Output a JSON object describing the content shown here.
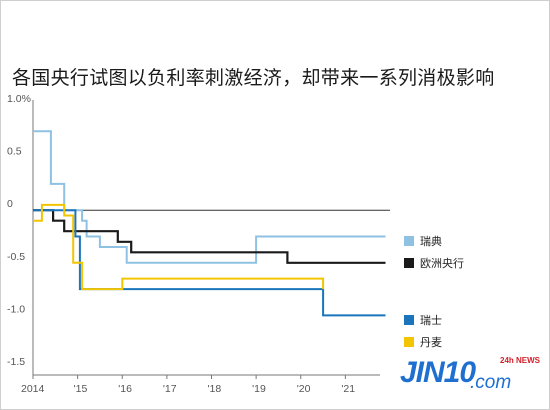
{
  "chart_data": {
    "type": "line",
    "title": "各国央行试图以负利率刺激经济，却带来一系列消极影响",
    "xlabel": "",
    "ylabel": "",
    "xlim": [
      2014.0,
      2022.0
    ],
    "ylim": [
      -1.5,
      1.0
    ],
    "y_ticks": [
      {
        "value": 1.0,
        "label": "1.0%"
      },
      {
        "value": 0.5,
        "label": "0.5"
      },
      {
        "value": 0.0,
        "label": "0"
      },
      {
        "value": -0.5,
        "label": "-0.5"
      },
      {
        "value": -1.0,
        "label": "-1.0"
      },
      {
        "value": -1.5,
        "label": "-1.5"
      }
    ],
    "x_ticks": [
      {
        "value": 2014.0,
        "label": "2014"
      },
      {
        "value": 2015.0,
        "label": "'15"
      },
      {
        "value": 2016.0,
        "label": "'16"
      },
      {
        "value": 2017.0,
        "label": "'17"
      },
      {
        "value": 2018.0,
        "label": "'18"
      },
      {
        "value": 2019.0,
        "label": "'19"
      },
      {
        "value": 2020.0,
        "label": "'20"
      },
      {
        "value": 2021.0,
        "label": "'21"
      }
    ],
    "legend_position": "right",
    "series": [
      {
        "name": "瑞典",
        "color": "#8fc1e3",
        "points": [
          [
            2014.0,
            0.75
          ],
          [
            2014.4,
            0.75
          ],
          [
            2014.4,
            0.25
          ],
          [
            2014.7,
            0.25
          ],
          [
            2014.7,
            0.0
          ],
          [
            2015.1,
            0.0
          ],
          [
            2015.1,
            -0.1
          ],
          [
            2015.2,
            -0.1
          ],
          [
            2015.2,
            -0.25
          ],
          [
            2015.5,
            -0.25
          ],
          [
            2015.5,
            -0.35
          ],
          [
            2016.1,
            -0.35
          ],
          [
            2016.1,
            -0.5
          ],
          [
            2019.0,
            -0.5
          ],
          [
            2019.0,
            -0.25
          ],
          [
            2021.9,
            -0.25
          ]
        ]
      },
      {
        "name": "欧洲央行",
        "color": "#1a1a1a",
        "points": [
          [
            2014.0,
            0.0
          ],
          [
            2014.45,
            0.0
          ],
          [
            2014.45,
            -0.1
          ],
          [
            2014.7,
            -0.1
          ],
          [
            2014.7,
            -0.2
          ],
          [
            2015.9,
            -0.2
          ],
          [
            2015.9,
            -0.3
          ],
          [
            2016.2,
            -0.3
          ],
          [
            2016.2,
            -0.4
          ],
          [
            2019.7,
            -0.4
          ],
          [
            2019.7,
            -0.5
          ],
          [
            2021.9,
            -0.5
          ]
        ]
      },
      {
        "name": "瑞士",
        "color": "#1b75bc",
        "points": [
          [
            2014.0,
            0.0
          ],
          [
            2014.95,
            0.0
          ],
          [
            2014.95,
            -0.25
          ],
          [
            2015.05,
            -0.25
          ],
          [
            2015.05,
            -0.75
          ],
          [
            2020.5,
            -0.75
          ],
          [
            2020.5,
            -1.0
          ],
          [
            2021.9,
            -1.0
          ]
        ]
      },
      {
        "name": "丹麦",
        "color": "#f2c500",
        "points": [
          [
            2014.0,
            -0.1
          ],
          [
            2014.2,
            -0.1
          ],
          [
            2014.2,
            0.05
          ],
          [
            2014.7,
            0.05
          ],
          [
            2014.7,
            -0.05
          ],
          [
            2014.9,
            -0.05
          ],
          [
            2014.9,
            -0.5
          ],
          [
            2015.1,
            -0.5
          ],
          [
            2015.1,
            -0.75
          ],
          [
            2016.0,
            -0.75
          ],
          [
            2016.0,
            -0.65
          ],
          [
            2020.5,
            -0.65
          ],
          [
            2020.5,
            -0.75
          ]
        ]
      }
    ]
  },
  "brand": {
    "logo": "JIN10",
    "logo_suffix": ".com",
    "logo_badge": "24h NEWS"
  }
}
